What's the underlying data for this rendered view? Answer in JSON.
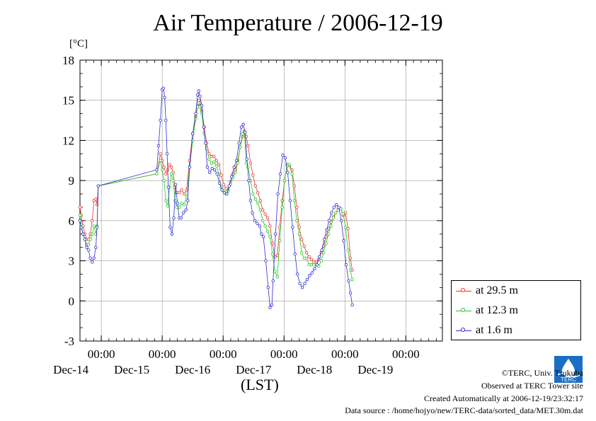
{
  "chart_data": {
    "type": "line",
    "title": "Air Temperature / 2006-12-19",
    "ylabel": "[°C]",
    "xlabel": "(LST)",
    "ylim": [
      -3,
      18
    ],
    "yticks": [
      -3,
      0,
      3,
      6,
      9,
      12,
      15,
      18
    ],
    "x_unit": "days since Dec-14 00:00",
    "xlim": [
      -0.35,
      5.6
    ],
    "xticks": [
      {
        "x": 0,
        "time": "00:00",
        "day": "Dec-14"
      },
      {
        "x": 1,
        "time": "00:00",
        "day": "Dec-15"
      },
      {
        "x": 2,
        "time": "00:00",
        "day": "Dec-16"
      },
      {
        "x": 3,
        "time": "00:00",
        "day": "Dec-17"
      },
      {
        "x": 4,
        "time": "00:00",
        "day": "Dec-18"
      },
      {
        "x": 5,
        "time": "00:00",
        "day": "Dec-19"
      }
    ],
    "legend_position": "right",
    "grid": true,
    "series": [
      {
        "name": "at 29.5 m",
        "color": "#e8322a",
        "points": [
          [
            -0.35,
            7.0
          ],
          [
            -0.33,
            6.4
          ],
          [
            -0.3,
            5.6
          ],
          [
            -0.27,
            5.0
          ],
          [
            -0.24,
            4.6
          ],
          [
            -0.21,
            4.6
          ],
          [
            -0.18,
            5.0
          ],
          [
            -0.15,
            6.0
          ],
          [
            -0.12,
            7.5
          ],
          [
            -0.09,
            7.6
          ],
          [
            -0.07,
            7.2
          ],
          [
            -0.05,
            8.6
          ],
          [
            0.91,
            9.5
          ],
          [
            0.97,
            11.0
          ],
          [
            1.0,
            10.5
          ],
          [
            1.03,
            10.0
          ],
          [
            1.06,
            9.5
          ],
          [
            1.09,
            9.8
          ],
          [
            1.12,
            10.2
          ],
          [
            1.15,
            10.0
          ],
          [
            1.18,
            9.6
          ],
          [
            1.21,
            8.5
          ],
          [
            1.24,
            8.1
          ],
          [
            1.28,
            8.1
          ],
          [
            1.32,
            8.3
          ],
          [
            1.36,
            8.0
          ],
          [
            1.4,
            8.3
          ],
          [
            1.45,
            10.5
          ],
          [
            1.5,
            12.5
          ],
          [
            1.55,
            13.8
          ],
          [
            1.58,
            14.6
          ],
          [
            1.6,
            15.0
          ],
          [
            1.62,
            14.8
          ],
          [
            1.65,
            14.2
          ],
          [
            1.69,
            13.0
          ],
          [
            1.73,
            11.8
          ],
          [
            1.77,
            11.0
          ],
          [
            1.81,
            10.8
          ],
          [
            1.85,
            10.8
          ],
          [
            1.89,
            10.5
          ],
          [
            1.93,
            10.2
          ],
          [
            1.97,
            9.4
          ],
          [
            2.01,
            8.7
          ],
          [
            2.05,
            8.4
          ],
          [
            2.08,
            8.3
          ],
          [
            2.12,
            8.9
          ],
          [
            2.16,
            9.5
          ],
          [
            2.2,
            9.8
          ],
          [
            2.24,
            10.5
          ],
          [
            2.28,
            11.5
          ],
          [
            2.32,
            12.3
          ],
          [
            2.35,
            12.7
          ],
          [
            2.38,
            12.3
          ],
          [
            2.41,
            11.6
          ],
          [
            2.45,
            10.3
          ],
          [
            2.49,
            9.4
          ],
          [
            2.53,
            8.6
          ],
          [
            2.57,
            8.1
          ],
          [
            2.61,
            7.5
          ],
          [
            2.65,
            6.8
          ],
          [
            2.69,
            6.5
          ],
          [
            2.73,
            6.2
          ],
          [
            2.77,
            5.6
          ],
          [
            2.81,
            4.3
          ],
          [
            2.85,
            3.3
          ],
          [
            2.89,
            3.4
          ],
          [
            2.93,
            5.5
          ],
          [
            2.97,
            7.5
          ],
          [
            3.01,
            9.0
          ],
          [
            3.05,
            10.2
          ],
          [
            3.09,
            10.1
          ],
          [
            3.13,
            9.8
          ],
          [
            3.17,
            8.6
          ],
          [
            3.21,
            7.0
          ],
          [
            3.25,
            5.5
          ],
          [
            3.29,
            4.6
          ],
          [
            3.33,
            4.1
          ],
          [
            3.37,
            3.6
          ],
          [
            3.41,
            3.3
          ],
          [
            3.45,
            3.1
          ],
          [
            3.49,
            2.9
          ],
          [
            3.53,
            2.9
          ],
          [
            3.57,
            3.1
          ],
          [
            3.61,
            3.6
          ],
          [
            3.65,
            4.1
          ],
          [
            3.69,
            4.8
          ],
          [
            3.73,
            5.4
          ],
          [
            3.77,
            5.9
          ],
          [
            3.81,
            6.3
          ],
          [
            3.85,
            6.6
          ],
          [
            3.89,
            6.9
          ],
          [
            3.93,
            6.9
          ],
          [
            3.97,
            6.4
          ],
          [
            4.01,
            6.6
          ],
          [
            4.05,
            5.4
          ],
          [
            4.09,
            3.2
          ],
          [
            4.12,
            2.3
          ]
        ]
      },
      {
        "name": "at 12.3 m",
        "color": "#27c81e",
        "points": [
          [
            -0.35,
            6.4
          ],
          [
            -0.33,
            5.7
          ],
          [
            -0.3,
            5.0
          ],
          [
            -0.27,
            4.6
          ],
          [
            -0.24,
            4.2
          ],
          [
            -0.21,
            4.2
          ],
          [
            -0.18,
            4.6
          ],
          [
            -0.15,
            5.0
          ],
          [
            -0.12,
            5.6
          ],
          [
            -0.09,
            5.0
          ],
          [
            -0.07,
            5.6
          ],
          [
            -0.05,
            8.6
          ],
          [
            0.91,
            9.5
          ],
          [
            0.97,
            10.5
          ],
          [
            1.0,
            9.8
          ],
          [
            1.03,
            9.0
          ],
          [
            1.06,
            7.5
          ],
          [
            1.09,
            7.1
          ],
          [
            1.12,
            8.5
          ],
          [
            1.15,
            9.5
          ],
          [
            1.18,
            9.0
          ],
          [
            1.21,
            7.5
          ],
          [
            1.24,
            7.0
          ],
          [
            1.28,
            7.0
          ],
          [
            1.32,
            7.3
          ],
          [
            1.36,
            7.2
          ],
          [
            1.4,
            7.8
          ],
          [
            1.45,
            10.0
          ],
          [
            1.5,
            12.0
          ],
          [
            1.55,
            13.6
          ],
          [
            1.58,
            14.5
          ],
          [
            1.6,
            14.8
          ],
          [
            1.62,
            14.5
          ],
          [
            1.65,
            14.0
          ],
          [
            1.69,
            12.5
          ],
          [
            1.73,
            11.4
          ],
          [
            1.77,
            10.6
          ],
          [
            1.81,
            10.3
          ],
          [
            1.85,
            10.4
          ],
          [
            1.89,
            10.1
          ],
          [
            1.93,
            9.5
          ],
          [
            1.97,
            8.5
          ],
          [
            2.01,
            8.2
          ],
          [
            2.05,
            8.0
          ],
          [
            2.08,
            8.2
          ],
          [
            2.12,
            8.7
          ],
          [
            2.16,
            9.2
          ],
          [
            2.2,
            9.6
          ],
          [
            2.24,
            10.3
          ],
          [
            2.28,
            11.5
          ],
          [
            2.32,
            12.5
          ],
          [
            2.35,
            12.6
          ],
          [
            2.38,
            10.3
          ],
          [
            2.41,
            10.0
          ],
          [
            2.45,
            9.0
          ],
          [
            2.49,
            8.0
          ],
          [
            2.53,
            7.6
          ],
          [
            2.57,
            7.3
          ],
          [
            2.61,
            6.8
          ],
          [
            2.65,
            6.0
          ],
          [
            2.69,
            5.6
          ],
          [
            2.73,
            5.2
          ],
          [
            2.77,
            4.8
          ],
          [
            2.81,
            3.5
          ],
          [
            2.85,
            2.2
          ],
          [
            2.89,
            1.8
          ],
          [
            2.93,
            4.5
          ],
          [
            2.97,
            7.0
          ],
          [
            3.01,
            9.0
          ],
          [
            3.05,
            10.1
          ],
          [
            3.09,
            10.2
          ],
          [
            3.13,
            9.5
          ],
          [
            3.17,
            7.5
          ],
          [
            3.21,
            6.0
          ],
          [
            3.25,
            5.0
          ],
          [
            3.29,
            3.6
          ],
          [
            3.33,
            3.2
          ],
          [
            3.37,
            3.2
          ],
          [
            3.41,
            2.7
          ],
          [
            3.45,
            2.7
          ],
          [
            3.49,
            2.7
          ],
          [
            3.53,
            2.8
          ],
          [
            3.57,
            2.6
          ],
          [
            3.61,
            3.0
          ],
          [
            3.65,
            3.6
          ],
          [
            3.69,
            4.3
          ],
          [
            3.73,
            5.0
          ],
          [
            3.77,
            5.6
          ],
          [
            3.81,
            6.2
          ],
          [
            3.85,
            6.6
          ],
          [
            3.89,
            6.8
          ],
          [
            3.93,
            6.9
          ],
          [
            3.97,
            6.5
          ],
          [
            4.01,
            5.5
          ],
          [
            4.05,
            3.8
          ],
          [
            4.09,
            2.3
          ],
          [
            4.12,
            1.6
          ]
        ]
      },
      {
        "name": "at 1.6 m",
        "color": "#2d2dd6",
        "points": [
          [
            -0.35,
            6.0
          ],
          [
            -0.33,
            5.5
          ],
          [
            -0.3,
            5.0
          ],
          [
            -0.27,
            4.6
          ],
          [
            -0.24,
            4.0
          ],
          [
            -0.21,
            3.8
          ],
          [
            -0.18,
            3.2
          ],
          [
            -0.15,
            2.9
          ],
          [
            -0.12,
            3.2
          ],
          [
            -0.09,
            4.0
          ],
          [
            -0.07,
            5.5
          ],
          [
            -0.05,
            8.6
          ],
          [
            0.91,
            9.8
          ],
          [
            0.94,
            11.6
          ],
          [
            0.97,
            13.5
          ],
          [
            1.0,
            15.8
          ],
          [
            1.02,
            15.9
          ],
          [
            1.04,
            15.2
          ],
          [
            1.06,
            13.5
          ],
          [
            1.08,
            11.0
          ],
          [
            1.1,
            8.5
          ],
          [
            1.13,
            5.5
          ],
          [
            1.16,
            5.0
          ],
          [
            1.19,
            6.2
          ],
          [
            1.22,
            8.7
          ],
          [
            1.25,
            7.3
          ],
          [
            1.28,
            6.2
          ],
          [
            1.31,
            6.2
          ],
          [
            1.35,
            6.6
          ],
          [
            1.39,
            6.8
          ],
          [
            1.42,
            7.5
          ],
          [
            1.45,
            10.0
          ],
          [
            1.5,
            12.5
          ],
          [
            1.55,
            14.0
          ],
          [
            1.58,
            15.4
          ],
          [
            1.6,
            15.7
          ],
          [
            1.62,
            15.3
          ],
          [
            1.65,
            14.6
          ],
          [
            1.68,
            13.0
          ],
          [
            1.71,
            11.8
          ],
          [
            1.74,
            10.0
          ],
          [
            1.78,
            9.6
          ],
          [
            1.82,
            9.9
          ],
          [
            1.86,
            9.8
          ],
          [
            1.9,
            9.5
          ],
          [
            1.94,
            8.8
          ],
          [
            1.98,
            8.3
          ],
          [
            2.02,
            8.1
          ],
          [
            2.06,
            8.0
          ],
          [
            2.1,
            8.6
          ],
          [
            2.14,
            9.3
          ],
          [
            2.18,
            10.0
          ],
          [
            2.22,
            10.5
          ],
          [
            2.26,
            11.8
          ],
          [
            2.3,
            13.0
          ],
          [
            2.33,
            13.2
          ],
          [
            2.36,
            12.6
          ],
          [
            2.39,
            10.6
          ],
          [
            2.42,
            9.0
          ],
          [
            2.45,
            7.5
          ],
          [
            2.48,
            6.6
          ],
          [
            2.52,
            6.0
          ],
          [
            2.56,
            5.8
          ],
          [
            2.6,
            5.6
          ],
          [
            2.63,
            5.0
          ],
          [
            2.66,
            4.8
          ],
          [
            2.7,
            3.0
          ],
          [
            2.74,
            1.0
          ],
          [
            2.77,
            -0.5
          ],
          [
            2.8,
            -0.3
          ],
          [
            2.82,
            1.5
          ],
          [
            2.86,
            5.0
          ],
          [
            2.9,
            8.0
          ],
          [
            2.94,
            9.5
          ],
          [
            2.98,
            10.9
          ],
          [
            3.02,
            10.7
          ],
          [
            3.06,
            9.6
          ],
          [
            3.1,
            7.5
          ],
          [
            3.14,
            5.5
          ],
          [
            3.18,
            3.5
          ],
          [
            3.22,
            2.0
          ],
          [
            3.26,
            1.3
          ],
          [
            3.3,
            1.0
          ],
          [
            3.34,
            1.3
          ],
          [
            3.38,
            1.6
          ],
          [
            3.42,
            1.9
          ],
          [
            3.46,
            2.1
          ],
          [
            3.5,
            2.4
          ],
          [
            3.54,
            2.7
          ],
          [
            3.58,
            3.3
          ],
          [
            3.62,
            3.8
          ],
          [
            3.66,
            4.6
          ],
          [
            3.7,
            5.3
          ],
          [
            3.74,
            6.0
          ],
          [
            3.78,
            6.6
          ],
          [
            3.82,
            7.0
          ],
          [
            3.86,
            7.2
          ],
          [
            3.9,
            7.0
          ],
          [
            3.94,
            6.0
          ],
          [
            3.98,
            4.5
          ],
          [
            4.02,
            2.7
          ],
          [
            4.06,
            1.5
          ],
          [
            4.09,
            0.6
          ],
          [
            4.12,
            -0.3
          ]
        ]
      }
    ]
  },
  "footer": {
    "copyright": "©TERC, Univ. Tsukuba",
    "site": "Observed at TERC Tower site",
    "created": "Created Automatically at 2006-12-19/23:32:17",
    "source": "Data source : /home/hojyo/new/TERC-data/sorted_data/MET.30m.dat"
  },
  "logo": {
    "text": "TERC",
    "color": "#1a6fc4"
  }
}
